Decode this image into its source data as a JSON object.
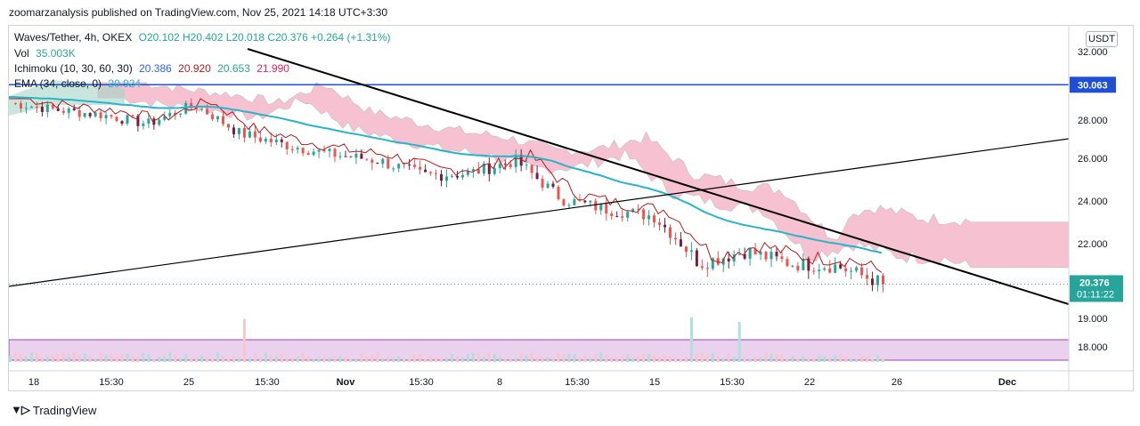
{
  "header": {
    "published": "zoomarzanalysis published on TradingView.com, Nov 25, 2021 14:18 UTC+3:30"
  },
  "legend": {
    "symbol": "Waves/Tether, 4h, OKEX",
    "ohlc": "O20.102  H20.402  L20.018  C20.376  +0.264 (+1.31%)",
    "vol_label": "Vol",
    "vol_value": "35.003K",
    "ichimoku_label": "Ichimoku (10, 30, 60, 30)",
    "ichimoku_v1": "20.386",
    "ichimoku_v2": "20.920",
    "ichimoku_v3": "20.653",
    "ichimoku_v4": "21.990",
    "ema_label": "EMA (34, close, 0)",
    "ema_value": "20.924"
  },
  "price_axis": {
    "unit": "USDT",
    "ticks": [
      "32.000",
      "28.000",
      "26.000",
      "24.000",
      "22.000",
      "19.000",
      "18.000"
    ],
    "horizontal_line_label": "30.063",
    "last_price_label": "20.376",
    "countdown_label": "01:11:22"
  },
  "time_axis": {
    "ticks": [
      "18",
      "15:30",
      "25",
      "15:30",
      "Nov",
      "15:30",
      "8",
      "15:30",
      "15",
      "15:30",
      "22",
      "26",
      "Dec"
    ]
  },
  "footer": {
    "brand": "TradingView"
  },
  "colors": {
    "candle_up": "#26a69a",
    "candle_down": "#ef5350",
    "candle_dark": "#7a1c3a",
    "ema": "#26b5c9",
    "kijun": "#b71c1c",
    "tenkan": "#3f51b5",
    "cloud_bear": "#f4b6c8",
    "cloud_bull": "#a5d6c8",
    "h_line": "#1e4fd6",
    "trend": "#000000",
    "volume_band": "#e1bee7"
  },
  "chart_data": {
    "type": "candlestick",
    "title": "Waves/Tether, 4h, OKEX",
    "ylabel": "USDT",
    "price_axis_ticks": [
      32,
      28,
      26,
      24,
      22,
      19,
      18
    ],
    "horizontal_level": 30.063,
    "last_price": 20.376,
    "ohlc_last": {
      "open": 20.102,
      "high": 20.402,
      "low": 20.018,
      "close": 20.376
    },
    "trendlines": [
      {
        "name": "descending",
        "from": {
          "time": "Oct 27",
          "price": 32.0
        },
        "to": {
          "time": "Dec 1",
          "price": 19.6
        }
      },
      {
        "name": "ascending",
        "from": {
          "time": "Oct 16",
          "price": 20.3
        },
        "to": {
          "time": "Dec 1",
          "price": 27.0
        }
      }
    ],
    "series": [
      {
        "name": "Close (approx.)",
        "x": [
          "Oct 18",
          "Oct 20",
          "Oct 22",
          "Oct 24",
          "Oct 26",
          "Oct 28",
          "Oct 30",
          "Nov 1",
          "Nov 3",
          "Nov 5",
          "Nov 7",
          "Nov 9",
          "Nov 11",
          "Nov 13",
          "Nov 15",
          "Nov 17",
          "Nov 19",
          "Nov 21",
          "Nov 23",
          "Nov 25"
        ],
        "values": [
          29.0,
          28.6,
          28.3,
          27.8,
          28.9,
          27.3,
          26.7,
          26.2,
          25.9,
          25.2,
          25.3,
          25.9,
          24.1,
          23.6,
          23.3,
          21.2,
          21.7,
          21.2,
          21.1,
          20.4
        ]
      }
    ]
  }
}
